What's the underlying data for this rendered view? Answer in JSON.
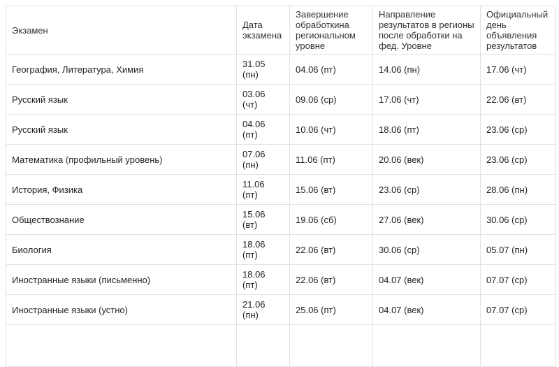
{
  "colors": {
    "border": "#e2e2e2",
    "header_text": "#333333",
    "cell_text": "#222222",
    "background": "#ffffff"
  },
  "table": {
    "columns": [
      {
        "key": "exam",
        "label": "Экзамен"
      },
      {
        "key": "exam-date",
        "label": "Дата\nэкзамена"
      },
      {
        "key": "regional-processing-end",
        "label": "Завершение\nобработкина\nрегиональном\nуровне"
      },
      {
        "key": "send-to-regions",
        "label": "Направление\nрезультатов в регионы\nпосле обработки на\nфед. Уровне"
      },
      {
        "key": "official-announcement",
        "label": "Официальный\nдень\nобъявления\nрезультатов"
      }
    ],
    "rows": [
      [
        "География, Литература, Химия",
        "31.05\n(пн)",
        "04.06 (пт)",
        "14.06 (пн)",
        "17.06 (чт)"
      ],
      [
        "Русский язык",
        "03.06\n(чт)",
        "09.06 (ср)",
        "17.06 (чт)",
        "22.06 (вт)"
      ],
      [
        "Русский язык",
        "04.06\n(пт)",
        "10.06 (чт)",
        "18.06 (пт)",
        "23.06 (ср)"
      ],
      [
        "Математика (профильный уровень)",
        "07.06\n(пн)",
        "11.06 (пт)",
        "20.06 (век)",
        "23.06 (ср)"
      ],
      [
        "История, Физика",
        "11.06\n(пт)",
        "15.06 (вт)",
        "23.06 (ср)",
        "28.06 (пн)"
      ],
      [
        "Обществознание",
        "15.06\n(вт)",
        "19.06 (сб)",
        "27.06 (век)",
        "30.06 (ср)"
      ],
      [
        "Биология",
        "18.06\n(пт)",
        "22.06 (вт)",
        "30.06 (ср)",
        "05.07 (пн)"
      ],
      [
        "Иностранные языки (письменно)",
        "18.06\n(пт)",
        "22.06 (вт)",
        "04.07 (век)",
        "07.07 (ср)"
      ],
      [
        "Иностранные языки (устно)",
        "21.06\n(пн)",
        "25.06 (пт)",
        "04.07 (век)",
        "07.07 (ср)"
      ]
    ]
  }
}
